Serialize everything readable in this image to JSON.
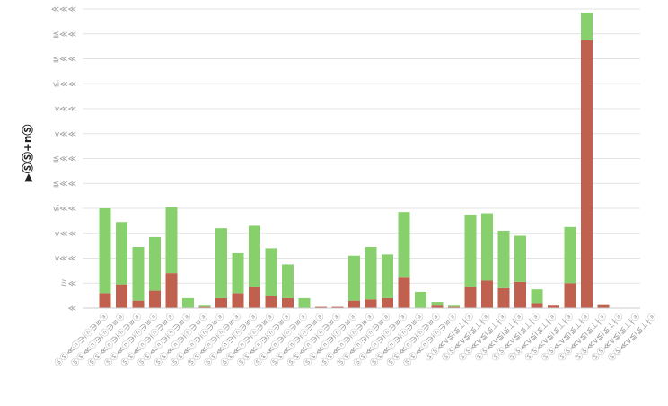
{
  "chart_data": {
    "type": "bar",
    "stacked": true,
    "ylabel": "▶ⓈⓈ+nⓈ",
    "ylim": [
      0,
      12
    ],
    "y_ticks": [
      {
        "value": 0,
        "label": "≪"
      },
      {
        "value": 1,
        "label": "ミ≪"
      },
      {
        "value": 2,
        "label": "ⅴ≪≪"
      },
      {
        "value": 3,
        "label": "ⅴ≪≪"
      },
      {
        "value": 4,
        "label": "ⅵ≪≪"
      },
      {
        "value": 5,
        "label": "≦≪≪"
      },
      {
        "value": 6,
        "label": "≦≪≪"
      },
      {
        "value": 7,
        "label": "ⅴ≪≪"
      },
      {
        "value": 8,
        "label": "ⅴ≪≪"
      },
      {
        "value": 9,
        "label": "ⅵ≪≪"
      },
      {
        "value": 10,
        "label": "≦≪≪"
      },
      {
        "value": 11,
        "label": "≦≪≪"
      },
      {
        "value": 12,
        "label": "≪≪≪"
      }
    ],
    "categories": [
      "ⓈⓈ≪ⓝ∋ⅰⓝ∋≡ⓐ",
      "ⓈⓈ≪ⓝ∋ⅰⓝ∋≡ⓐ",
      "ⓈⓈ≪ⓝ∋ⅰⓝ∋≡ⓐ",
      "ⓈⓈ≪ⓝ∋ⅰⓝ∋≡ⓐ",
      "ⓈⓈ≪ⓝ∋ⅰⓝ∋≡ⓐ",
      "ⓈⓈ≪ⓝ∋ⅰⓝ∋≡ⓐ",
      "ⓈⓈ≪ⓝ∋ⅰⓝ∋≡ⓐ",
      "ⓈⓈ≪ⓝ∋ⅰⓝ∋≡ⓐ",
      "ⓈⓈ≪ⓝ∋ⅰⓝ∋≡ⓐ",
      "ⓈⓈ≪ⓝ∋ⅰⓝ∋≡ⓐ",
      "ⓈⓈ≪ⓝ∋ⅰⓝ∋≡ⓐ",
      "ⓈⓈ≪ⓝ∋ⅰⓝ∋≡ⓐ",
      "ⓈⓈ≪ⓝ∋ⅰⓝ∋≡ⓐ",
      "ⓈⓈ≪ⓝ∋ⅰⓝ∋≡ⓐ",
      "ⓈⓈ≪ⓝ∋ⅰⓝ∋≡ⓐ",
      "ⓈⓈ≪ⓝ∋ⅰⓝ∋≡ⓐ",
      "ⓈⓈ≪ⓝ∋ⅰⓝ∋≡ⓐ",
      "ⓈⓈ≪ⓝ∋ⅰⓝ∋≡ⓐ",
      "ⓈⓈ≪ⓝ∋ⅰⓝ∋≡ⓐ",
      "ⓈⓈ≪ⓝ∋ⅰⓝ∋≡ⓐ",
      "ⓈⓈ≪ⓝ∋ⅰⓝ∋≡ⓐ",
      "ⓈⓈ≪ⓝ∋ⅰⓝ∋≡ⓐ",
      "ⓈⓈ≪ⅴ≦ⅰ≦⊥∤ⓐ",
      "ⓈⓈ≪ⅴ≦ⅰ≦⊥∤ⓐ",
      "ⓈⓈ≪ⅴ≦ⅰ≦⊥∤ⓐ",
      "ⓈⓈ≪ⅴ≦ⅰ≦⊥∤ⓐ",
      "ⓈⓈ≪ⅴ≦ⅰ≦⊥∤ⓐ",
      "ⓈⓈ≪ⅴ≦ⅰ≦⊥∤ⓐ",
      "ⓈⓈ≪ⅴ≦ⅰ≦⊥∤ⓐ",
      "ⓈⓈ≪ⅴ≦ⅰ≦⊥∤ⓐ",
      "ⓈⓈ≪ⅴ≦ⅰ≦⊥∤ⓐ",
      "ⓈⓈ≪ⅴ≦ⅰ≦⊥∤ⓐ",
      "ⓈⓈ≪ⅴ≦ⅰ≦⊥∤ⓐ",
      "ⓈⓈ≪ⅴ≦ⅰ≦⊥∤ⓐ"
    ],
    "series": [
      {
        "color": "#c0604f",
        "values": [
          0.6,
          0.95,
          0.3,
          0.7,
          1.4,
          0.0,
          0.05,
          0.4,
          0.6,
          0.85,
          0.5,
          0.4,
          0.0,
          0.05,
          0.05,
          0.3,
          0.35,
          0.4,
          1.25,
          0.0,
          0.1,
          0.05,
          0.85,
          1.1,
          0.8,
          1.05,
          0.2,
          0.1,
          1.0,
          10.75,
          0.12,
          0,
          0,
          0
        ]
      },
      {
        "color": "#88cf6e",
        "values": [
          3.4,
          2.5,
          2.15,
          2.15,
          2.65,
          0.4,
          0.05,
          2.8,
          1.6,
          2.45,
          1.9,
          1.35,
          0.4,
          0.0,
          0.0,
          1.8,
          2.1,
          1.75,
          2.6,
          0.65,
          0.15,
          0.05,
          2.9,
          2.7,
          2.3,
          1.85,
          0.55,
          0.0,
          2.25,
          1.1,
          0.0,
          0,
          0,
          0
        ]
      }
    ],
    "grid": true,
    "legend": "none"
  }
}
